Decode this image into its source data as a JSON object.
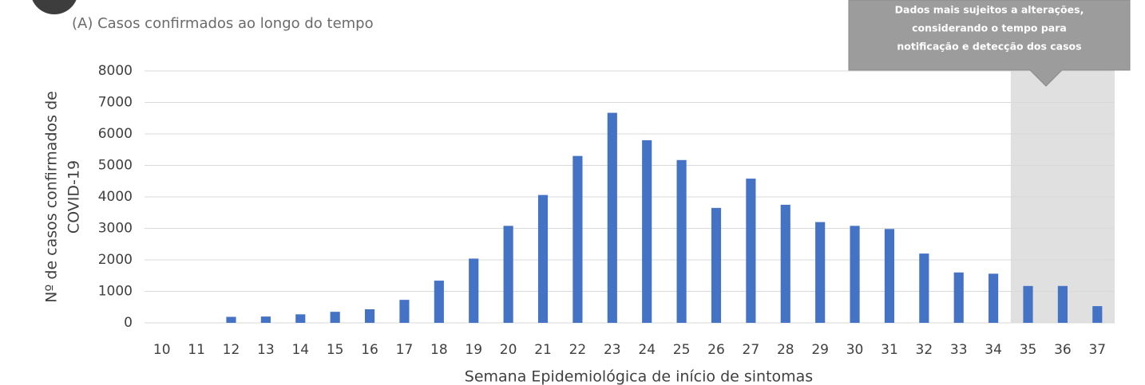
{
  "chart_data": {
    "type": "bar",
    "title": "(A)  Casos confirmados ao longo do tempo",
    "x_label": "Semana Epidemiológica de início de sintomas",
    "y_label": [
      "Nº de casos confirmados de",
      "COVID-19"
    ],
    "categories": [
      "10",
      "11",
      "12",
      "13",
      "14",
      "15",
      "16",
      "17",
      "18",
      "19",
      "20",
      "21",
      "22",
      "23",
      "24",
      "25",
      "26",
      "27",
      "28",
      "29",
      "30",
      "31",
      "32",
      "33",
      "34",
      "35",
      "36",
      "37"
    ],
    "values": [
      0,
      0,
      190,
      200,
      270,
      350,
      430,
      730,
      1340,
      2040,
      3080,
      4060,
      5300,
      6670,
      5800,
      5170,
      3650,
      4580,
      3750,
      3200,
      3080,
      2980,
      2200,
      1600,
      1560,
      1170,
      1170,
      530
    ],
    "color": "#4472c4",
    "ylim": [
      0,
      8000
    ],
    "yticks": [
      0,
      1000,
      2000,
      3000,
      4000,
      5000,
      6000,
      7000,
      8000
    ],
    "grid": true,
    "shaded_range": [
      "35",
      "37"
    ],
    "annotation": [
      "Dados mais sujeitos a alterações,",
      "considerando o tempo para",
      "notificação e detecção dos casos"
    ]
  }
}
